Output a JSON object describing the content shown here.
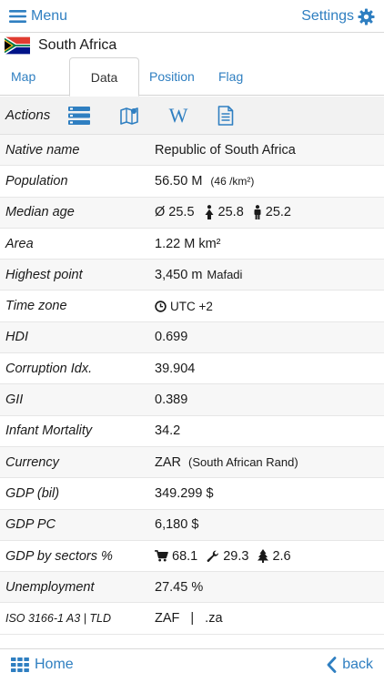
{
  "header": {
    "menu_label": "Menu",
    "settings_label": "Settings",
    "accent_color": "#2f7fc1"
  },
  "country": {
    "name": "South Africa",
    "flag_icon": "south-africa-flag"
  },
  "tabs": [
    {
      "label": "Map",
      "active": false
    },
    {
      "label": "Data",
      "active": true
    },
    {
      "label": "Position",
      "active": false
    },
    {
      "label": "Flag",
      "active": false
    }
  ],
  "actions": {
    "label": "Actions",
    "icons": [
      "list-icon",
      "map-icon",
      "wikipedia-icon",
      "document-icon"
    ],
    "wiki_glyph": "W"
  },
  "rows": {
    "native_name": {
      "key": "Native name",
      "value": "Republic of South Africa"
    },
    "population": {
      "key": "Population",
      "value": "56.50 M",
      "sub": "(46 /km²)"
    },
    "median_age": {
      "key": "Median age",
      "avg": "Ø 25.5",
      "female": "25.8",
      "male": "25.2"
    },
    "area": {
      "key": "Area",
      "value": "1.22 M km²"
    },
    "highest_point": {
      "key": "Highest point",
      "value": "3,450 m",
      "sub": "Mafadi"
    },
    "time_zone": {
      "key": "Time zone",
      "value": "UTC +2"
    },
    "hdi": {
      "key": "HDI",
      "value": "0.699"
    },
    "corruption": {
      "key": "Corruption Idx.",
      "value": "39.904"
    },
    "gii": {
      "key": "GII",
      "value": "0.389"
    },
    "infant_mortality": {
      "key": "Infant Mortality",
      "value": "34.2"
    },
    "currency": {
      "key": "Currency",
      "value": "ZAR",
      "sub": "(South African Rand)"
    },
    "gdp_bil": {
      "key": "GDP (bil)",
      "value": "349.299 $"
    },
    "gdp_pc": {
      "key": "GDP PC",
      "value": "6,180 $"
    },
    "gdp_sectors": {
      "key": "GDP by sectors %",
      "services": "68.1",
      "industry": "29.3",
      "agriculture": "2.6"
    },
    "unemployment": {
      "key": "Unemployment",
      "value": "27.45 %"
    },
    "iso": {
      "key": "ISO 3166-1 A3 | TLD",
      "code": "ZAF",
      "sep": "|",
      "tld": ".za"
    }
  },
  "footer": {
    "home_label": "Home",
    "back_label": "back"
  }
}
